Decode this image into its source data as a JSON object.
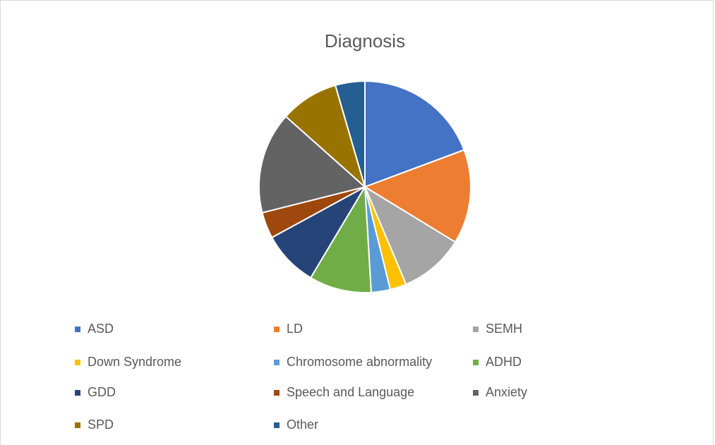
{
  "chart_data": {
    "type": "pie",
    "title": "Diagnosis",
    "categories": [
      "ASD",
      "LD",
      "SEMH",
      "Down Syndrome",
      "Chromosome abnormality",
      "ADHD",
      "GDD",
      "Speech and Language",
      "Anxiety",
      "SPD",
      "Other"
    ],
    "values": [
      19.3,
      14.4,
      9.9,
      2.5,
      2.9,
      9.5,
      8.5,
      4,
      15.5,
      8.9,
      4.5
    ],
    "colors": [
      "#4472c4",
      "#ed7d31",
      "#a5a5a5",
      "#ffc000",
      "#5b9bd5",
      "#70ad47",
      "#264478",
      "#9e480e",
      "#636363",
      "#997300",
      "#255e91"
    ],
    "legend": "bottom"
  }
}
